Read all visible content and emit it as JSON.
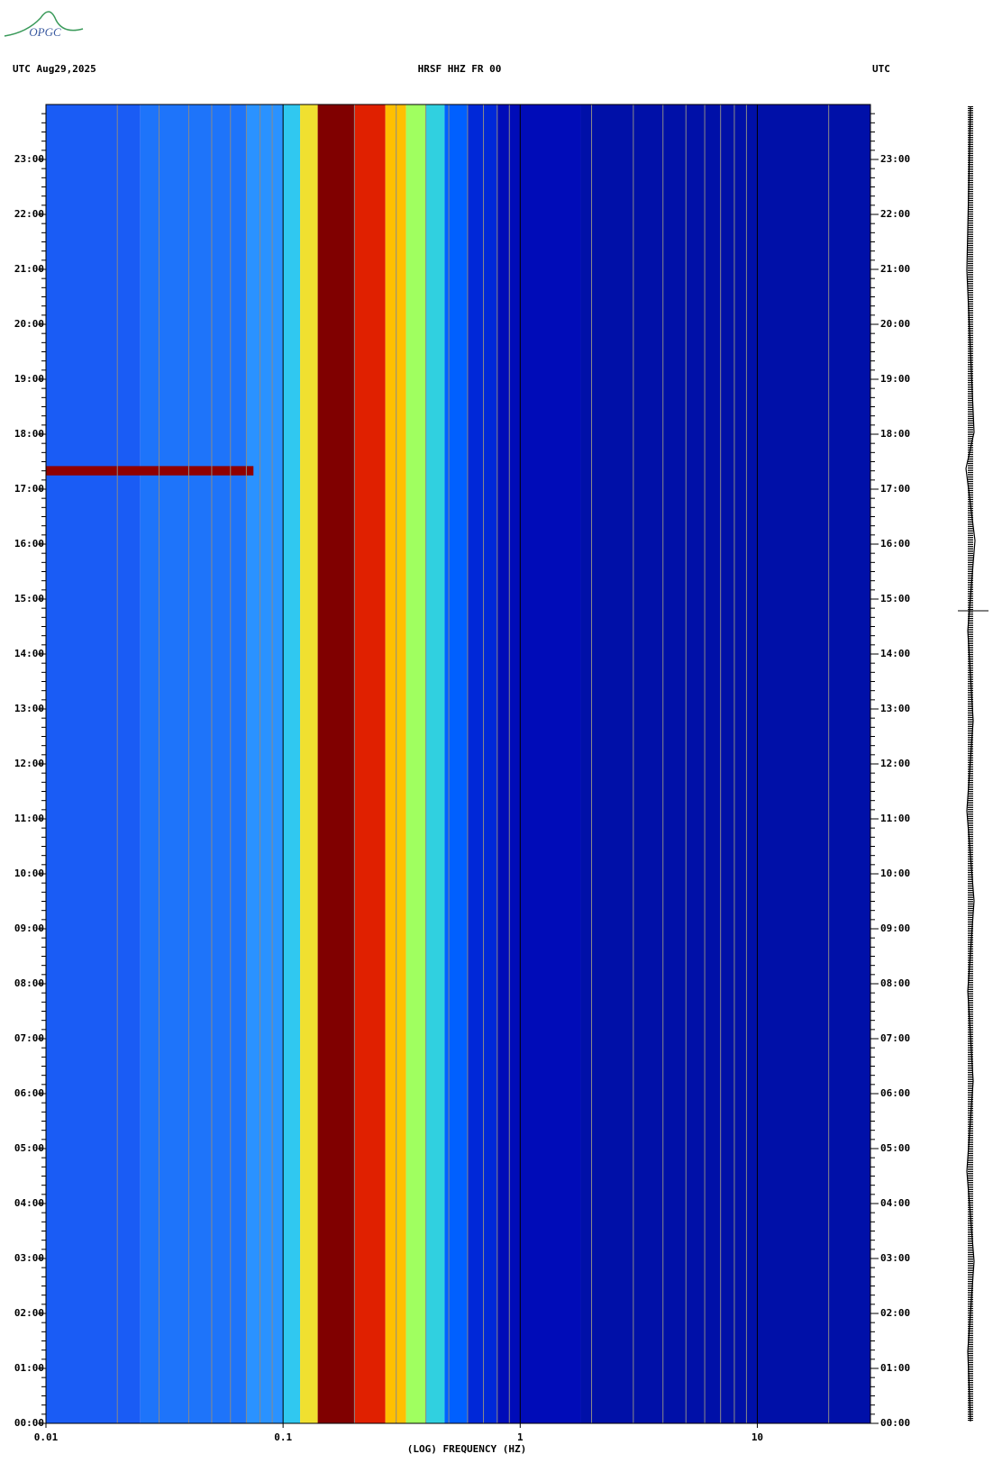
{
  "logo": "OPGC",
  "chart_data": {
    "type": "spectrogram",
    "title_left": "UTC  Aug29,2025",
    "title": "HRSF HHZ FR 00",
    "title_right": "UTC",
    "xlabel": "(LOG) FREQUENCY (HZ)",
    "xscale": "log",
    "xlim": [
      0.01,
      30
    ],
    "xticks": [
      0.01,
      0.1,
      1,
      10
    ],
    "minor_xticks": [
      0.02,
      0.03,
      0.04,
      0.05,
      0.06,
      0.07,
      0.08,
      0.09,
      0.2,
      0.3,
      0.4,
      0.5,
      0.6,
      0.7,
      0.8,
      0.9,
      2,
      3,
      4,
      5,
      6,
      7,
      8,
      9,
      20
    ],
    "ylim": [
      0,
      24
    ],
    "yticks": [
      {
        "value": 0,
        "label": "00:00"
      },
      {
        "value": 1,
        "label": "01:00"
      },
      {
        "value": 2,
        "label": "02:00"
      },
      {
        "value": 3,
        "label": "03:00"
      },
      {
        "value": 4,
        "label": "04:00"
      },
      {
        "value": 5,
        "label": "05:00"
      },
      {
        "value": 6,
        "label": "06:00"
      },
      {
        "value": 7,
        "label": "07:00"
      },
      {
        "value": 8,
        "label": "08:00"
      },
      {
        "value": 9,
        "label": "09:00"
      },
      {
        "value": 10,
        "label": "10:00"
      },
      {
        "value": 11,
        "label": "11:00"
      },
      {
        "value": 12,
        "label": "12:00"
      },
      {
        "value": 13,
        "label": "13:00"
      },
      {
        "value": 14,
        "label": "14:00"
      },
      {
        "value": 15,
        "label": "15:00"
      },
      {
        "value": 16,
        "label": "16:00"
      },
      {
        "value": 17,
        "label": "17:00"
      },
      {
        "value": 18,
        "label": "18:00"
      },
      {
        "value": 19,
        "label": "19:00"
      },
      {
        "value": 20,
        "label": "20:00"
      },
      {
        "value": 21,
        "label": "21:00"
      },
      {
        "value": 22,
        "label": "22:00"
      },
      {
        "value": 23,
        "label": "23:00"
      }
    ],
    "minor_yticks_per_hour": 6,
    "bands": {
      "edges": [
        0.01,
        0.025,
        0.07,
        0.1,
        0.118,
        0.14,
        0.2,
        0.27,
        0.33,
        0.4,
        0.48,
        0.6,
        0.8,
        1.8,
        30
      ],
      "colors": [
        "#1a5cf5",
        "#1e74fa",
        "#2a92ff",
        "#30c8f0",
        "#f0e030",
        "#800000",
        "#e02000",
        "#ffc000",
        "#a0ff60",
        "#30d0e0",
        "#0060ff",
        "#0028d8",
        "#000cb8",
        "#0010a8"
      ]
    },
    "events": [
      {
        "f": [
          0.01,
          0.075
        ],
        "t": [
          17.25,
          17.42
        ],
        "color": "#900000"
      }
    ]
  }
}
